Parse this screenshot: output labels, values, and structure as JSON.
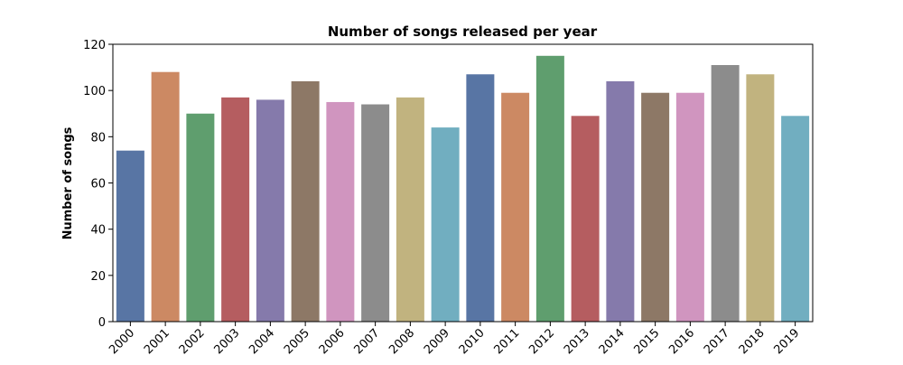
{
  "chart_data": {
    "type": "bar",
    "title": "Number of songs released per year",
    "ylabel": "Number of songs",
    "categories": [
      "2000",
      "2001",
      "2002",
      "2003",
      "2004",
      "2005",
      "2006",
      "2007",
      "2008",
      "2009",
      "2010",
      "2011",
      "2012",
      "2013",
      "2014",
      "2015",
      "2016",
      "2017",
      "2018",
      "2019"
    ],
    "values": [
      74,
      108,
      90,
      97,
      96,
      104,
      95,
      94,
      97,
      84,
      107,
      99,
      115,
      89,
      104,
      99,
      99,
      111,
      107,
      89
    ],
    "colors": [
      "#5875a4",
      "#cc8963",
      "#5f9e6e",
      "#b55d60",
      "#857aab",
      "#8d7866",
      "#d095bf",
      "#8c8c8c",
      "#c1b37f",
      "#71aec0"
    ],
    "ylim": [
      0,
      120
    ],
    "yticks": [
      0,
      20,
      40,
      60,
      80,
      100,
      120
    ],
    "grid": false
  }
}
